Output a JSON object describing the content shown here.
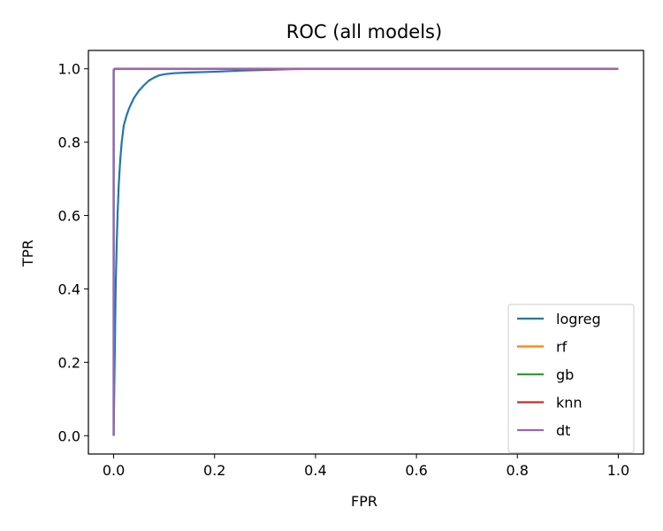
{
  "chart_data": {
    "type": "line",
    "title": "ROC (all models)",
    "xlabel": "FPR",
    "ylabel": "TPR",
    "xlim": [
      -0.05,
      1.05
    ],
    "ylim": [
      -0.05,
      1.05
    ],
    "x_ticks": [
      "0.0",
      "0.2",
      "0.4",
      "0.6",
      "0.8",
      "1.0"
    ],
    "y_ticks": [
      "0.0",
      "0.2",
      "0.4",
      "0.6",
      "0.8",
      "1.0"
    ],
    "x_tick_values": [
      0,
      0.2,
      0.4,
      0.6,
      0.8,
      1.0
    ],
    "y_tick_values": [
      0,
      0.2,
      0.4,
      0.6,
      0.8,
      1.0
    ],
    "grid": false,
    "legend_placement": "lower-right",
    "series": [
      {
        "name": "logreg",
        "color": "#1f77b4",
        "x": [
          0,
          0.002,
          0.004,
          0.006,
          0.008,
          0.01,
          0.013,
          0.016,
          0.02,
          0.025,
          0.03,
          0.04,
          0.05,
          0.06,
          0.07,
          0.08,
          0.09,
          0.1,
          0.12,
          0.15,
          0.2,
          0.25,
          0.3,
          0.35,
          0.4,
          0.6,
          0.8,
          1.0
        ],
        "y": [
          0,
          0.2,
          0.4,
          0.52,
          0.61,
          0.68,
          0.75,
          0.8,
          0.845,
          0.87,
          0.89,
          0.92,
          0.94,
          0.955,
          0.968,
          0.976,
          0.982,
          0.985,
          0.988,
          0.99,
          0.992,
          0.995,
          0.997,
          0.999,
          1.0,
          1.0,
          1.0,
          1.0
        ]
      },
      {
        "name": "rf",
        "color": "#ff7f0e",
        "x": [
          0,
          0,
          0.002,
          1.0
        ],
        "y": [
          0,
          0.995,
          1.0,
          1.0
        ]
      },
      {
        "name": "gb",
        "color": "#2ca02c",
        "x": [
          0,
          0,
          0.002,
          1.0
        ],
        "y": [
          0,
          0.995,
          1.0,
          1.0
        ]
      },
      {
        "name": "knn",
        "color": "#d62728",
        "x": [
          0,
          0,
          0.002,
          1.0
        ],
        "y": [
          0,
          0.995,
          1.0,
          1.0
        ]
      },
      {
        "name": "dt",
        "color": "#9467bd",
        "x": [
          0,
          0,
          0.002,
          1.0
        ],
        "y": [
          0,
          0.998,
          1.0,
          1.0
        ]
      }
    ]
  }
}
